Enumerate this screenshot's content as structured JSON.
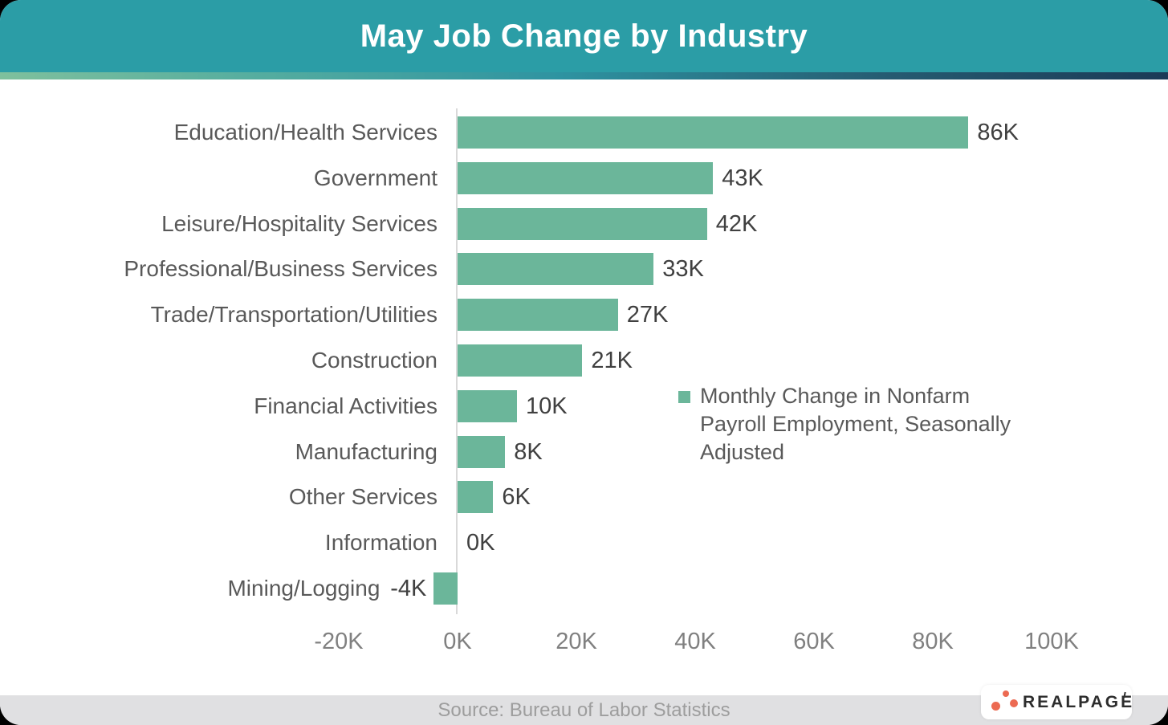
{
  "header": {
    "title": "May Job Change by Industry",
    "background": "#2B9DA6",
    "text_color": "#FFFFFF"
  },
  "chart_data": {
    "type": "bar",
    "orientation": "horizontal",
    "title": "May Job Change by Industry",
    "categories": [
      "Education/Health Services",
      "Government",
      "Leisure/Hospitality Services",
      "Professional/Business Services",
      "Trade/Transportation/Utilities",
      "Construction",
      "Financial Activities",
      "Manufacturing",
      "Other Services",
      "Information",
      "Mining/Logging"
    ],
    "values": [
      86,
      43,
      42,
      33,
      27,
      21,
      10,
      8,
      6,
      0,
      -4
    ],
    "labels": [
      "86K",
      "43K",
      "42K",
      "33K",
      "27K",
      "21K",
      "10K",
      "8K",
      "6K",
      "0K",
      "-4K"
    ],
    "unit": "K",
    "series_name": "Monthly Change in Nonfarm Payroll Employment, Seasonally Adjusted",
    "bar_color": "#6BB69A",
    "x_ticks": [
      "-20K",
      "0K",
      "20K",
      "40K",
      "60K",
      "80K",
      "100K"
    ],
    "x_tick_values": [
      -20,
      0,
      20,
      40,
      60,
      80,
      100
    ],
    "xlim": [
      -20,
      100
    ],
    "grid": false,
    "legend_position": "middle-right"
  },
  "legend": {
    "label": "Monthly Change in Nonfarm Payroll Employment, Seasonally Adjusted",
    "swatch_color": "#6BB69A"
  },
  "footer": {
    "source": "Source: Bureau of Labor Statistics"
  },
  "brand": {
    "name": "REALPAGE",
    "dot_color": "#EC6A52"
  }
}
